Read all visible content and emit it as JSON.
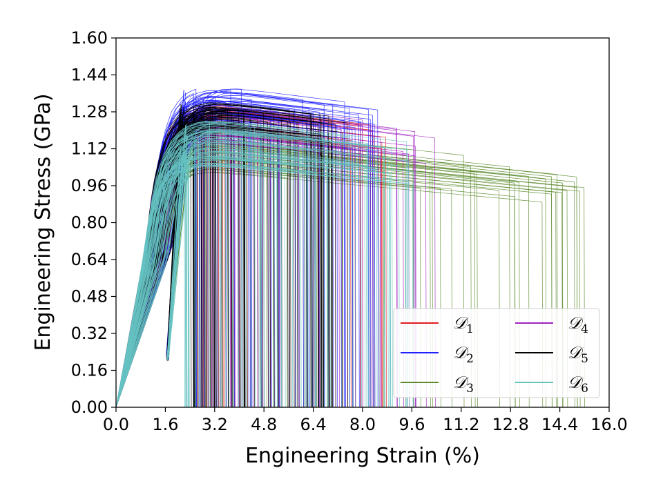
{
  "chart_data": {
    "type": "line",
    "title": "",
    "xlabel": "Engineering Strain (%)",
    "ylabel": "Engineering Stress (GPa)",
    "xlim": [
      0.0,
      16.0
    ],
    "ylim": [
      0.0,
      1.6
    ],
    "xticks": [
      "0.0",
      "1.6",
      "3.2",
      "4.8",
      "6.4",
      "8.0",
      "9.6",
      "11.2",
      "12.8",
      "14.4",
      "16.0"
    ],
    "yticks": [
      "0.00",
      "0.16",
      "0.32",
      "0.48",
      "0.64",
      "0.80",
      "0.96",
      "1.12",
      "1.28",
      "1.44",
      "1.60"
    ],
    "legend_position": "lower-right",
    "series": [
      {
        "name": "D",
        "sub": "1",
        "color": "#e31a1c",
        "peak_range": [
          1.18,
          1.32
        ],
        "fracture_range": [
          2.4,
          8.8
        ],
        "count": 40
      },
      {
        "name": "D",
        "sub": "2",
        "color": "#1f1fff",
        "peak_range": [
          1.25,
          1.4
        ],
        "fracture_range": [
          2.5,
          8.6
        ],
        "count": 60
      },
      {
        "name": "D",
        "sub": "3",
        "color": "#5a8a2a",
        "peak_range": [
          1.02,
          1.22
        ],
        "fracture_range": [
          2.8,
          15.2
        ],
        "count": 55
      },
      {
        "name": "D",
        "sub": "4",
        "color": "#a020c0",
        "peak_range": [
          1.15,
          1.33
        ],
        "fracture_range": [
          2.4,
          10.5
        ],
        "count": 55
      },
      {
        "name": "D",
        "sub": "5",
        "color": "#000000",
        "peak_range": [
          1.2,
          1.33
        ],
        "fracture_range": [
          2.4,
          7.5
        ],
        "count": 90
      },
      {
        "name": "D",
        "sub": "6",
        "color": "#66c2c2",
        "peak_range": [
          1.05,
          1.25
        ],
        "fracture_range": [
          2.2,
          9.8
        ],
        "count": 90
      }
    ]
  }
}
